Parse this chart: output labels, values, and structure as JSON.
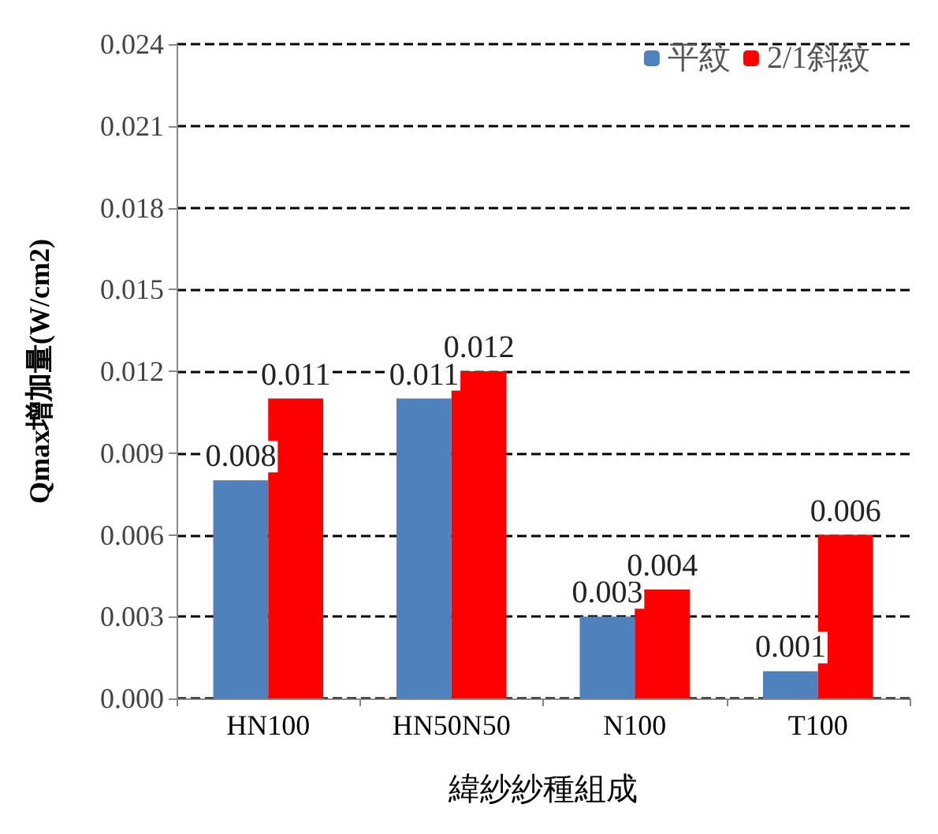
{
  "chart_data": {
    "type": "bar",
    "xlabel": "緯紗紗種組成",
    "ylabel": "Qmax增加量(W/cm2)",
    "categories": [
      "HN100",
      "HN50N50",
      "N100",
      "T100"
    ],
    "series": [
      {
        "name": "平紋",
        "color": "#4f81bd",
        "values": [
          0.008,
          0.011,
          0.003,
          0.001
        ]
      },
      {
        "name": "2/1斜紋",
        "color": "#ff0000",
        "values": [
          0.011,
          0.012,
          0.004,
          0.006
        ]
      }
    ],
    "ylim": [
      0,
      0.024
    ],
    "yticks": [
      {
        "value": 0,
        "label": "0.000"
      },
      {
        "value": 0.003,
        "label": "0.003"
      },
      {
        "value": 0.006,
        "label": "0.006"
      },
      {
        "value": 0.009,
        "label": "0.009"
      },
      {
        "value": 0.012,
        "label": "0.012"
      },
      {
        "value": 0.015,
        "label": "0.015"
      },
      {
        "value": 0.018,
        "label": "0.018"
      },
      {
        "value": 0.021,
        "label": "0.021"
      },
      {
        "value": 0.024,
        "label": "0.024"
      }
    ],
    "grid": "y",
    "legend": "top right",
    "data_labels": true
  }
}
